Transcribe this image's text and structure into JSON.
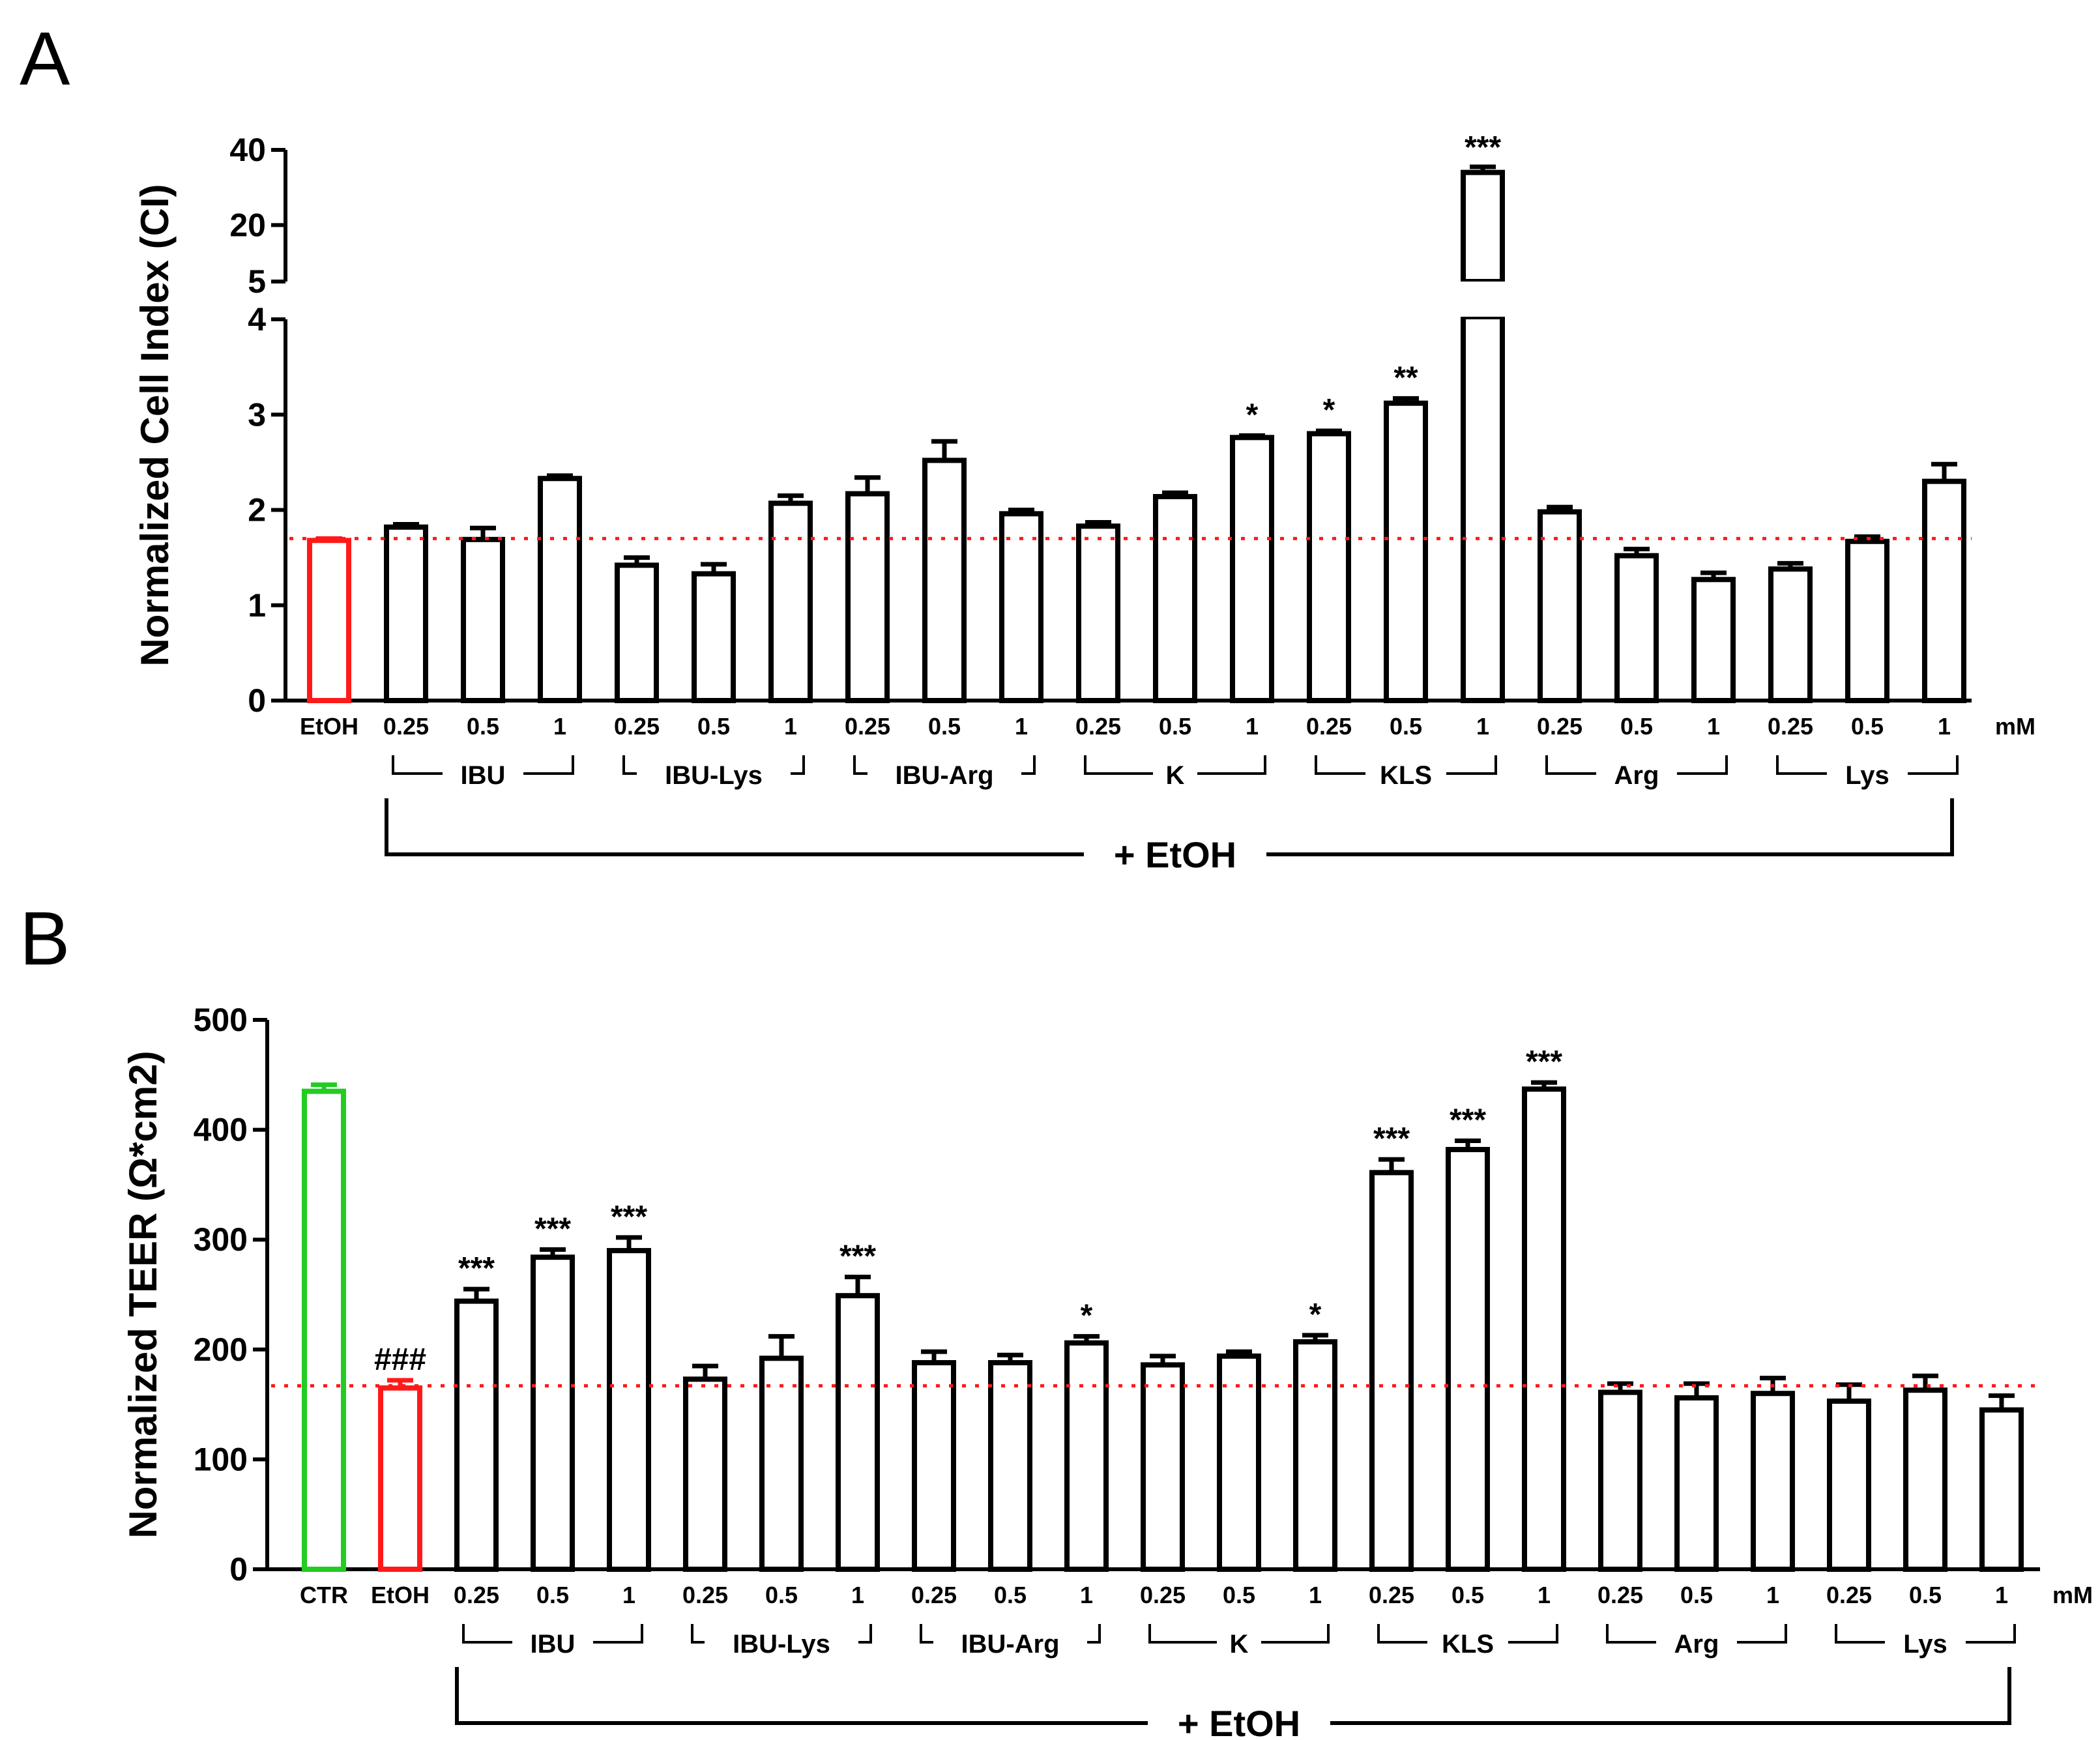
{
  "chart_data": [
    {
      "panel": "A",
      "type": "bar",
      "ylabel": "Normalized Cell Index (CI)",
      "ylim": [
        0,
        4
      ],
      "ylim_upper": [
        5,
        40
      ],
      "yticks": [
        "0",
        "1",
        "2",
        "3",
        "4"
      ],
      "yticks_upper": [
        "5",
        "20",
        "40"
      ],
      "axis_break": true,
      "reference_line": 1.7,
      "unit": "mM",
      "combined_label": "+ EtOH",
      "controls": [
        {
          "label": "EtOH",
          "value": 1.68,
          "error": 0.02,
          "color": "#ff1a1a",
          "sig": ""
        }
      ],
      "groups": [
        {
          "name": "IBU",
          "doses": [
            "0.25",
            "0.5",
            "1"
          ],
          "values": [
            1.82,
            1.69,
            2.33
          ],
          "errors": [
            0.03,
            0.12,
            0.03
          ],
          "sig": [
            "",
            "",
            ""
          ]
        },
        {
          "name": "IBU-Lys",
          "doses": [
            "0.25",
            "0.5",
            "1"
          ],
          "values": [
            1.42,
            1.33,
            2.07
          ],
          "errors": [
            0.08,
            0.1,
            0.08
          ],
          "sig": [
            "",
            "",
            ""
          ]
        },
        {
          "name": "IBU-Arg",
          "doses": [
            "0.25",
            "0.5",
            "1"
          ],
          "values": [
            2.17,
            2.52,
            1.96
          ],
          "errors": [
            0.17,
            0.2,
            0.04
          ],
          "sig": [
            "",
            "",
            ""
          ]
        },
        {
          "name": "K",
          "doses": [
            "0.25",
            "0.5",
            "1"
          ],
          "values": [
            1.83,
            2.14,
            2.76
          ],
          "errors": [
            0.04,
            0.04,
            0.02
          ],
          "sig": [
            "",
            "",
            "*"
          ]
        },
        {
          "name": "KLS",
          "doses": [
            "0.25",
            "0.5",
            "1"
          ],
          "values": [
            2.8,
            3.12,
            34.0
          ],
          "errors": [
            0.03,
            0.05,
            1.5
          ],
          "sig": [
            "*",
            "**",
            "***"
          ]
        },
        {
          "name": "Arg",
          "doses": [
            "0.25",
            "0.5",
            "1"
          ],
          "values": [
            1.98,
            1.52,
            1.27
          ],
          "errors": [
            0.05,
            0.07,
            0.07
          ],
          "sig": [
            "",
            "",
            ""
          ]
        },
        {
          "name": "Lys",
          "doses": [
            "0.25",
            "0.5",
            "1"
          ],
          "values": [
            1.38,
            1.67,
            2.3
          ],
          "errors": [
            0.06,
            0.05,
            0.18
          ],
          "sig": [
            "",
            "",
            ""
          ]
        }
      ]
    },
    {
      "panel": "B",
      "type": "bar",
      "ylabel": "Normalized TEER (Ω*cm2)",
      "ylim": [
        0,
        500
      ],
      "yticks": [
        "0",
        "100",
        "200",
        "300",
        "400",
        "500"
      ],
      "axis_break": false,
      "reference_line": 167,
      "unit": "mM",
      "combined_label": "+ EtOH",
      "controls": [
        {
          "label": "CTR",
          "value": 435,
          "error": 6,
          "color": "#22cc22",
          "sig": ""
        },
        {
          "label": "EtOH",
          "value": 165,
          "error": 7,
          "color": "#ff1a1a",
          "sig": "###"
        }
      ],
      "groups": [
        {
          "name": "IBU",
          "doses": [
            "0.25",
            "0.5",
            "1"
          ],
          "values": [
            244,
            284,
            290
          ],
          "errors": [
            11,
            7,
            12
          ],
          "sig": [
            "***",
            "***",
            "***"
          ]
        },
        {
          "name": "IBU-Lys",
          "doses": [
            "0.25",
            "0.5",
            "1"
          ],
          "values": [
            173,
            192,
            249
          ],
          "errors": [
            12,
            20,
            17
          ],
          "sig": [
            "",
            "",
            "***"
          ]
        },
        {
          "name": "IBU-Arg",
          "doses": [
            "0.25",
            "0.5",
            "1"
          ],
          "values": [
            188,
            188,
            206
          ],
          "errors": [
            10,
            7,
            6
          ],
          "sig": [
            "",
            "",
            "*"
          ]
        },
        {
          "name": "K",
          "doses": [
            "0.25",
            "0.5",
            "1"
          ],
          "values": [
            186,
            194,
            207
          ],
          "errors": [
            8,
            4,
            6
          ],
          "sig": [
            "",
            "",
            "*"
          ]
        },
        {
          "name": "KLS",
          "doses": [
            "0.25",
            "0.5",
            "1"
          ],
          "values": [
            361,
            382,
            437
          ],
          "errors": [
            12,
            8,
            6
          ],
          "sig": [
            "***",
            "***",
            "***"
          ]
        },
        {
          "name": "Arg",
          "doses": [
            "0.25",
            "0.5",
            "1"
          ],
          "values": [
            161,
            156,
            160
          ],
          "errors": [
            8,
            13,
            14
          ],
          "sig": [
            "",
            "",
            ""
          ]
        },
        {
          "name": "Lys",
          "doses": [
            "0.25",
            "0.5",
            "1"
          ],
          "values": [
            153,
            163,
            145
          ],
          "errors": [
            15,
            13,
            13
          ],
          "sig": [
            "",
            "",
            ""
          ]
        }
      ]
    }
  ]
}
